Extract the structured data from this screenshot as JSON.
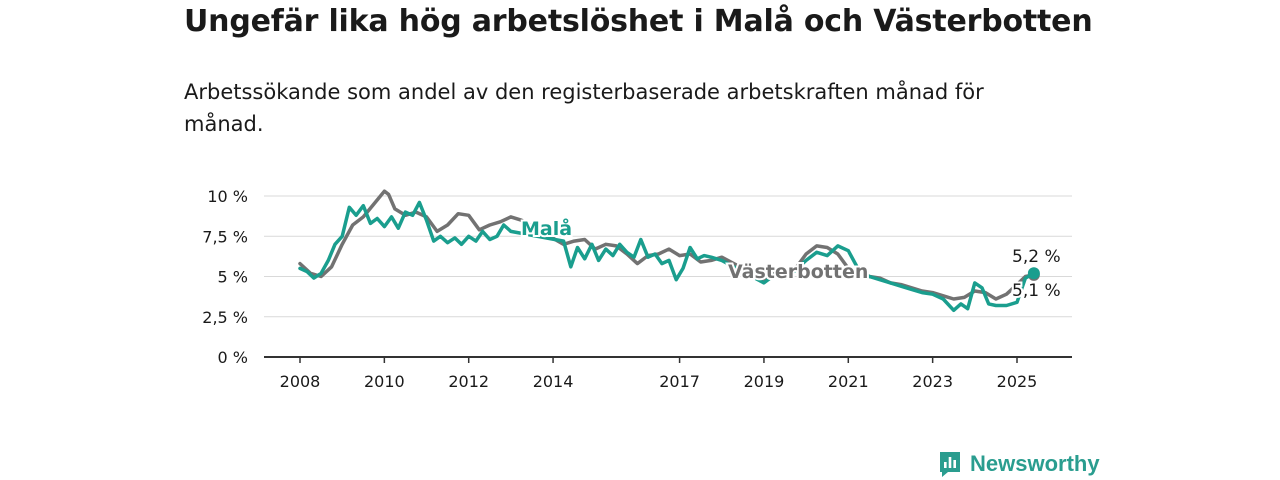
{
  "title": "Ungefär lika hög arbetslöshet i Malå och Västerbotten",
  "subtitle": "Arbetssökande som andel av den registerbaserade arbetskraften månad för månad.",
  "brand": {
    "name": "Newsworthy",
    "icon": "newsworthy-logo-icon"
  },
  "colors": {
    "mala": "#1a9e8e",
    "vasterbotten": "#727272",
    "grid": "#d9d9d9",
    "axis": "#333333"
  },
  "chart_data": {
    "type": "line",
    "ylim": [
      0,
      10
    ],
    "yticks": [
      0,
      2.5,
      5,
      7.5,
      10
    ],
    "ytick_labels": [
      "0 %",
      "2,5 %",
      "5 %",
      "7,5 %",
      "10 %"
    ],
    "xlim": [
      2007.75,
      2026.35
    ],
    "xticks": [
      2008,
      2010,
      2012,
      2014,
      2017,
      2019,
      2021,
      2023,
      2025
    ],
    "xtick_labels": [
      "2008",
      "2010",
      "2012",
      "2014",
      "2017",
      "2019",
      "2021",
      "2023",
      "2025"
    ],
    "grid": true,
    "series": [
      {
        "name": "Västerbotten",
        "key": "vasterbotten",
        "end_label": "5,1 %",
        "x": [
          2008.0,
          2008.25,
          2008.5,
          2008.75,
          2009.0,
          2009.25,
          2009.5,
          2009.75,
          2010.0,
          2010.1,
          2010.25,
          2010.5,
          2010.75,
          2011.0,
          2011.25,
          2011.5,
          2011.75,
          2012.0,
          2012.25,
          2012.5,
          2012.75,
          2013.0,
          2013.25,
          2014.25,
          2014.5,
          2014.75,
          2015.0,
          2015.25,
          2015.5,
          2015.75,
          2016.0,
          2016.25,
          2016.5,
          2016.75,
          2017.0,
          2017.25,
          2017.5,
          2017.75,
          2018.0,
          2019.0,
          2019.25,
          2019.5,
          2019.75,
          2020.0,
          2020.25,
          2020.5,
          2020.75,
          2021.0,
          2021.25,
          2021.5,
          2021.75,
          2022.0,
          2022.25,
          2022.5,
          2022.75,
          2023.0,
          2023.25,
          2023.5,
          2023.75,
          2024.0,
          2024.25,
          2024.5,
          2024.75,
          2025.0,
          2025.2,
          2025.4
        ],
        "y": [
          5.8,
          5.2,
          5.0,
          5.6,
          7.0,
          8.2,
          8.7,
          9.5,
          10.3,
          10.1,
          9.2,
          8.8,
          9.0,
          8.7,
          7.8,
          8.2,
          8.9,
          8.8,
          7.9,
          8.2,
          8.4,
          8.7,
          8.5,
          7.0,
          7.2,
          7.3,
          6.7,
          7.0,
          6.9,
          6.4,
          5.8,
          6.3,
          6.4,
          6.7,
          6.3,
          6.4,
          5.9,
          6.0,
          6.2,
          4.8,
          5.2,
          5.1,
          5.5,
          6.4,
          6.9,
          6.8,
          6.4,
          5.5,
          5.3,
          5.0,
          4.9,
          4.6,
          4.5,
          4.3,
          4.1,
          4.0,
          3.8,
          3.6,
          3.7,
          4.1,
          4.0,
          3.6,
          3.9,
          4.5,
          5.0,
          5.1
        ]
      },
      {
        "name": "Malå",
        "key": "mala",
        "end_label": "5,2 %",
        "x": [
          2008.0,
          2008.17,
          2008.33,
          2008.5,
          2008.67,
          2008.83,
          2009.0,
          2009.17,
          2009.33,
          2009.5,
          2009.67,
          2009.83,
          2010.0,
          2010.17,
          2010.33,
          2010.5,
          2010.67,
          2010.83,
          2011.0,
          2011.17,
          2011.33,
          2011.5,
          2011.67,
          2011.83,
          2012.0,
          2012.17,
          2012.33,
          2012.5,
          2012.67,
          2012.83,
          2013.0,
          2014.25,
          2014.42,
          2014.58,
          2014.75,
          2014.92,
          2015.08,
          2015.25,
          2015.42,
          2015.58,
          2015.75,
          2015.92,
          2016.08,
          2016.25,
          2016.42,
          2016.58,
          2016.75,
          2016.92,
          2017.08,
          2017.25,
          2017.42,
          2017.58,
          2017.75,
          2018.0,
          2019.0,
          2019.25,
          2019.5,
          2019.75,
          2020.0,
          2020.25,
          2020.5,
          2020.75,
          2021.0,
          2021.25,
          2021.5,
          2021.75,
          2022.0,
          2022.25,
          2022.5,
          2022.75,
          2023.0,
          2023.25,
          2023.5,
          2023.67,
          2023.83,
          2024.0,
          2024.17,
          2024.33,
          2024.5,
          2024.75,
          2025.0,
          2025.2,
          2025.4
        ],
        "y": [
          5.5,
          5.3,
          4.9,
          5.2,
          6.0,
          7.0,
          7.5,
          9.3,
          8.8,
          9.4,
          8.3,
          8.6,
          8.1,
          8.7,
          8.0,
          9.0,
          8.8,
          9.6,
          8.5,
          7.2,
          7.5,
          7.1,
          7.4,
          7.0,
          7.5,
          7.2,
          7.8,
          7.3,
          7.5,
          8.2,
          7.8,
          7.2,
          5.6,
          6.8,
          6.1,
          7.0,
          6.0,
          6.7,
          6.3,
          7.0,
          6.5,
          6.2,
          7.3,
          6.2,
          6.4,
          5.8,
          6.0,
          4.8,
          5.5,
          6.8,
          6.1,
          6.3,
          6.2,
          6.0,
          4.6,
          5.1,
          4.9,
          5.4,
          6.0,
          6.5,
          6.3,
          6.9,
          6.6,
          5.4,
          5.0,
          4.8,
          4.6,
          4.4,
          4.2,
          4.0,
          3.9,
          3.6,
          2.9,
          3.3,
          3.0,
          4.6,
          4.3,
          3.3,
          3.2,
          3.2,
          3.4,
          4.9,
          5.2
        ]
      }
    ]
  }
}
